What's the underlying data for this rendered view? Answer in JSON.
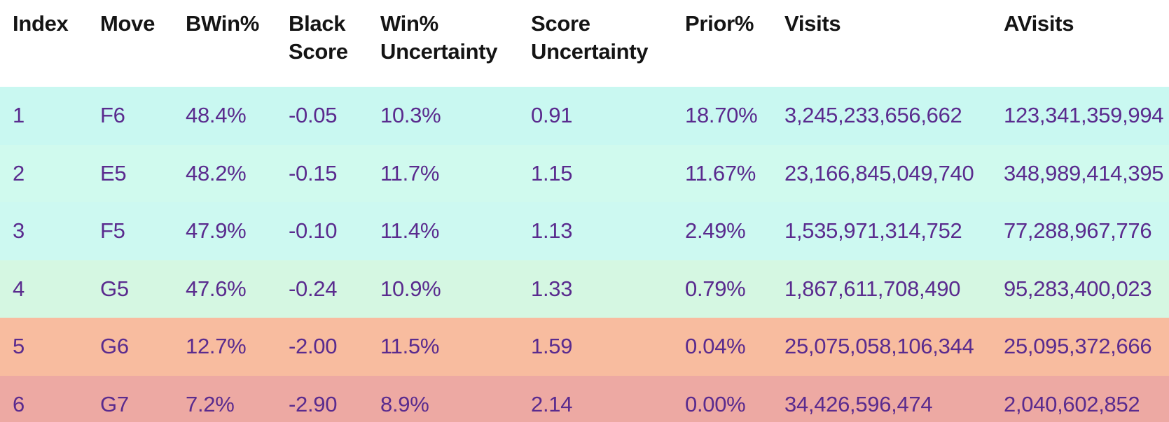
{
  "table": {
    "title": "move-analysis-table",
    "columns": {
      "index": "Index",
      "move": "Move",
      "bwin": "BWin%",
      "black_score": "Black Score",
      "win_uncertainty": "Win% Uncertainty",
      "score_uncertainty": "Score Uncertainty",
      "prior": "Prior%",
      "visits": "Visits",
      "avisits": "AVisits"
    },
    "rows": [
      {
        "index": "1",
        "move": "F6",
        "bwin": "48.4%",
        "black_score": "-0.05",
        "win_uncertainty": "10.3%",
        "score_uncertainty": "0.91",
        "prior": "18.70%",
        "visits": "3,245,233,656,662",
        "avisits": "123,341,359,994",
        "row_color": "#c9f8f1"
      },
      {
        "index": "2",
        "move": "E5",
        "bwin": "48.2%",
        "black_score": "-0.15",
        "win_uncertainty": "11.7%",
        "score_uncertainty": "1.15",
        "prior": "11.67%",
        "visits": "23,166,845,049,740",
        "avisits": "348,989,414,395",
        "row_color": "#d0faee"
      },
      {
        "index": "3",
        "move": "F5",
        "bwin": "47.9%",
        "black_score": "-0.10",
        "win_uncertainty": "11.4%",
        "score_uncertainty": "1.13",
        "prior": "2.49%",
        "visits": "1,535,971,314,752",
        "avisits": "77,288,967,776",
        "row_color": "#cdf9f1"
      },
      {
        "index": "4",
        "move": "G5",
        "bwin": "47.6%",
        "black_score": "-0.24",
        "win_uncertainty": "10.9%",
        "score_uncertainty": "1.33",
        "prior": "0.79%",
        "visits": "1,867,611,708,490",
        "avisits": "95,283,400,023",
        "row_color": "#d5f7e2"
      },
      {
        "index": "5",
        "move": "G6",
        "bwin": "12.7%",
        "black_score": "-2.00",
        "win_uncertainty": "11.5%",
        "score_uncertainty": "1.59",
        "prior": "0.04%",
        "visits": "25,075,058,106,344",
        "avisits": "25,095,372,666",
        "row_color": "#f8bc9f"
      },
      {
        "index": "6",
        "move": "G7",
        "bwin": "7.2%",
        "black_score": "-2.90",
        "win_uncertainty": "8.9%",
        "score_uncertainty": "2.14",
        "prior": "0.00%",
        "visits": "34,426,596,474",
        "avisits": "2,040,602,852",
        "row_color": "#eda9a3"
      }
    ]
  },
  "colors": {
    "header_text": "#141414",
    "cell_text": "#5a2b8e",
    "header_background": "#ffffff"
  }
}
